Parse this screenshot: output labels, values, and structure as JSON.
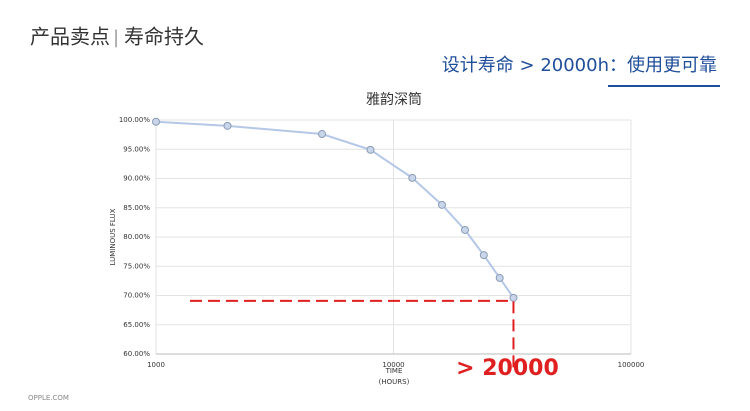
{
  "header": {
    "section": "产品卖点",
    "separator": "|",
    "title": "寿命持久",
    "claim": "设计寿命 > 20000h：使用更可靠"
  },
  "footer": "OPPLE.COM",
  "chart_data": {
    "type": "line",
    "title": "雅韵深筒",
    "x_label": "TIME",
    "x_label_unit": "(HOURS)",
    "y_label": "LUMINOUS FLUX",
    "x": [
      1000,
      2000,
      5000,
      8000,
      12000,
      16000,
      20000,
      24000,
      28000,
      32000
    ],
    "series": [
      {
        "name": "雅韵深筒",
        "color": "#b4c7e7",
        "values": [
          99.7,
          99.0,
          97.6,
          94.9,
          90.1,
          85.5,
          81.2,
          76.9,
          73.0,
          69.6
        ]
      }
    ],
    "xscale": "log",
    "xlim": [
      1000,
      100000
    ],
    "xticks": [
      1000,
      10000,
      100000
    ],
    "ylim": [
      60,
      100
    ],
    "yticks": [
      {
        "value": 60,
        "label": "60.00%"
      },
      {
        "value": 65,
        "label": "65.00%"
      },
      {
        "value": 70,
        "label": "70.00%"
      },
      {
        "value": 75,
        "label": "75.00%"
      },
      {
        "value": 80,
        "label": "80.00%"
      },
      {
        "value": 85,
        "label": "85.00%"
      },
      {
        "value": 90,
        "label": "90.00%"
      },
      {
        "value": 95,
        "label": "95.00%"
      },
      {
        "value": 100,
        "label": "100.00%"
      }
    ],
    "grid": true,
    "annotation": "> 20000",
    "annotation_color": "#e02020"
  }
}
